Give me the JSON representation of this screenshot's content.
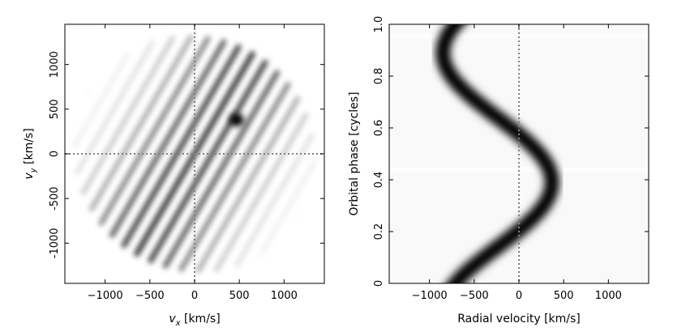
{
  "chart_data": [
    {
      "type": "heatmap",
      "subtype": "doppler-tomogram",
      "xlabel": "v_x [km/s]",
      "ylabel": "v_y [km/s]",
      "xlabel_main": "v",
      "xlabel_sub": "x",
      "xlabel_unit": " [km/s]",
      "ylabel_main": "v",
      "ylabel_sub": "y",
      "ylabel_unit": " [km/s]",
      "xlim": [
        -1450,
        1450
      ],
      "ylim": [
        -1450,
        1450
      ],
      "xticks": [
        -1000,
        -500,
        0,
        500,
        1000
      ],
      "xtick_labels": [
        "−1000",
        "−500",
        "0",
        "500",
        "1000"
      ],
      "yticks": [
        -1000,
        -500,
        0,
        500,
        1000
      ],
      "ytick_labels": [
        "-1000",
        "-500",
        "0",
        "500",
        "1000"
      ],
      "colormap": "gray_r",
      "reference_lines": {
        "x": 0,
        "y": 0,
        "style": "dotted",
        "color": "#808080"
      },
      "features": [
        {
          "kind": "diagonal-stripe-pattern",
          "direction_deg": 60,
          "extent_kms": 1400
        },
        {
          "kind": "compact-spot",
          "vx": 470,
          "vy": 380
        }
      ],
      "grid": false
    },
    {
      "type": "heatmap",
      "subtype": "trailed-spectrum",
      "xlabel": "Radial velocity [km/s]",
      "ylabel": "Orbital phase [cycles]",
      "xlim": [
        -1450,
        1450
      ],
      "ylim": [
        0,
        1
      ],
      "xticks": [
        -1000,
        -500,
        0,
        500,
        1000
      ],
      "xtick_labels": [
        "−1000",
        "−500",
        "0",
        "500",
        "1000"
      ],
      "yticks": [
        0,
        0.2,
        0.4,
        0.6,
        0.8,
        1.0
      ],
      "ytick_labels": [
        "0",
        "0.2",
        "0.4",
        "0.6",
        "0.8",
        "1.0"
      ],
      "colormap": "gray_r",
      "reference_lines": {
        "x": 0,
        "style": "dotted",
        "color": "#808080"
      },
      "s_wave": {
        "gamma_kms": -240,
        "amplitude_kms": 610,
        "phase_of_max": 0.39
      },
      "grid": false
    }
  ]
}
